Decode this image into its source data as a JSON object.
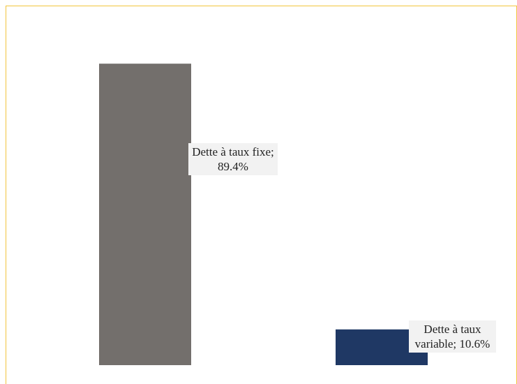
{
  "chart_data": {
    "type": "bar",
    "categories": [
      "Dette à taux fixe",
      "Dette à taux variable"
    ],
    "values": [
      89.4,
      10.6
    ],
    "unit": "%",
    "colors": [
      "#736f6c",
      "#1f3864"
    ],
    "data_labels": [
      "Dette à taux fixe; 89.4%",
      "Dette à taux variable; 10.6%"
    ],
    "title": "",
    "xlabel": "",
    "ylabel": "",
    "ylim": [
      0,
      100
    ],
    "grid": false,
    "legend": "none"
  },
  "frame_color": "#f2c53d"
}
